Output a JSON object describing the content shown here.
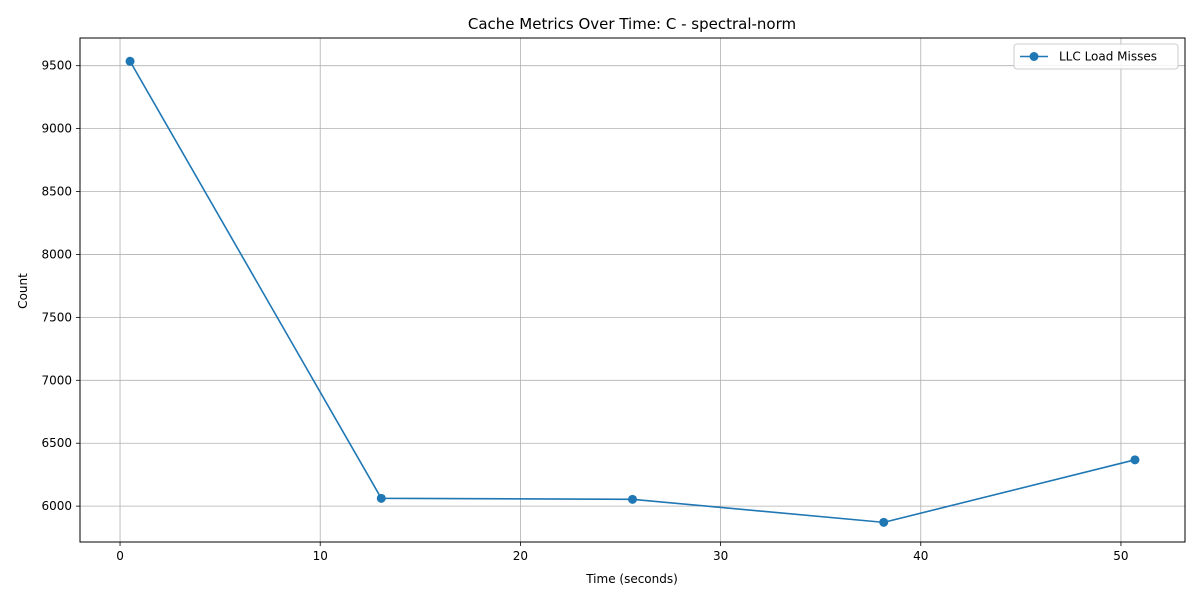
{
  "chart_data": {
    "type": "line",
    "title": "Cache Metrics Over Time: C - spectral-norm",
    "xlabel": "Time (seconds)",
    "ylabel": "Count",
    "xlim": [
      -2,
      53.2
    ],
    "ylim": [
      5715,
      9720
    ],
    "xticks": [
      0,
      10,
      20,
      30,
      40,
      50
    ],
    "yticks": [
      6000,
      6500,
      7000,
      7500,
      8000,
      8500,
      9000,
      9500
    ],
    "grid": true,
    "legend_position": "top-right",
    "series": [
      {
        "name": "LLC Load Misses",
        "color": "#1f77b4",
        "marker": "circle",
        "x": [
          0.5,
          13.05,
          25.6,
          38.15,
          50.7
        ],
        "y": [
          9535,
          6062,
          6054,
          5871,
          6368
        ]
      }
    ]
  }
}
